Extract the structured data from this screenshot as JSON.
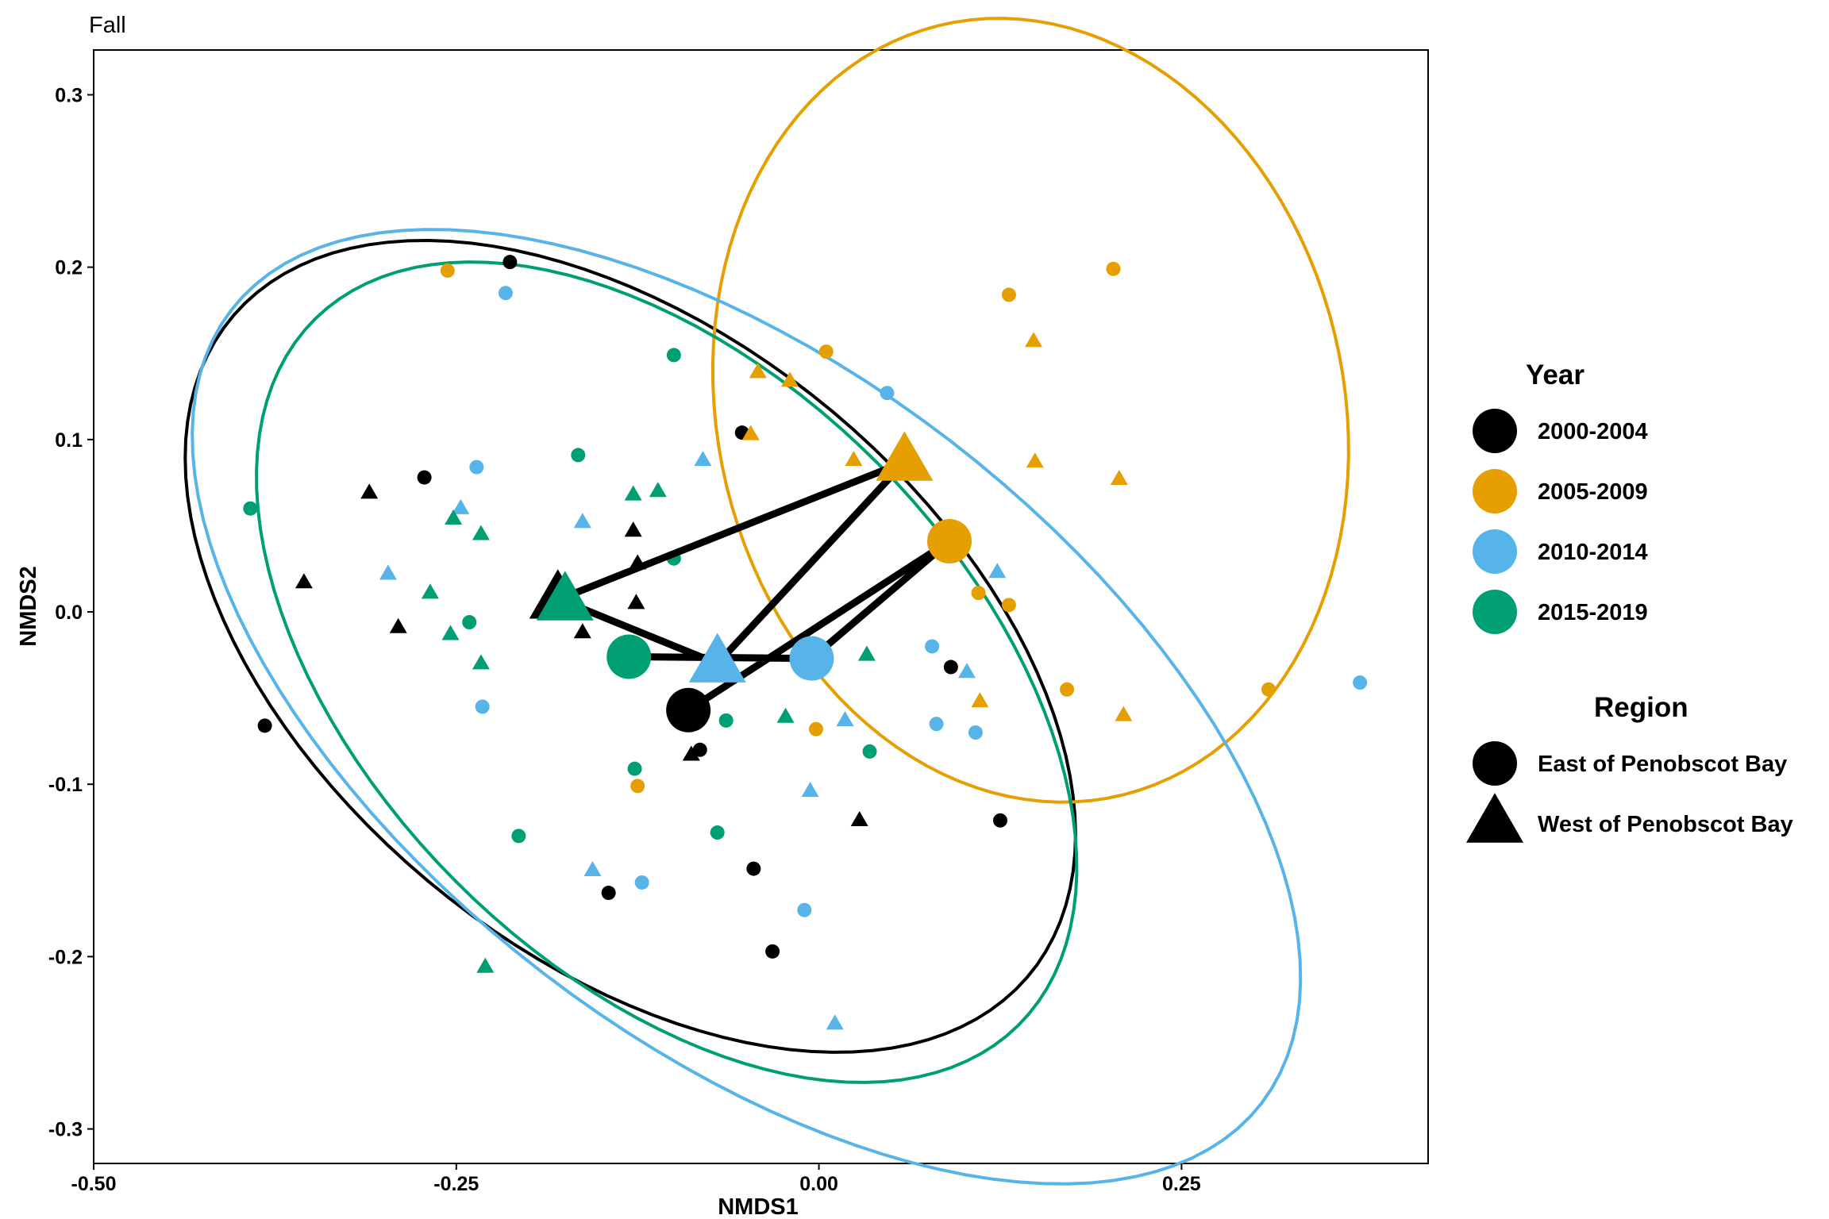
{
  "chart_data": {
    "type": "scatter",
    "title": "Fall",
    "xlabel": "NMDS1",
    "ylabel": "NMDS2",
    "xlim": [
      -0.5,
      0.42
    ],
    "ylim": [
      -0.32,
      0.326
    ],
    "x_ticks": [
      -0.5,
      -0.25,
      0.0,
      0.25
    ],
    "x_tick_labels": [
      "-0.50",
      "-0.25",
      "0.00",
      "0.25"
    ],
    "y_ticks": [
      -0.3,
      -0.2,
      -0.1,
      0.0,
      0.1,
      0.2,
      0.3
    ],
    "y_tick_labels": [
      "-0.3",
      "-0.2",
      "-0.1",
      "0.0",
      "0.1",
      "0.2",
      "0.3"
    ],
    "grid": false,
    "legend": {
      "position": "right",
      "year_title": "Year",
      "region_title": "Region",
      "years": [
        {
          "label": "2000-2004",
          "color": "#000000"
        },
        {
          "label": "2005-2009",
          "color": "#E69F00"
        },
        {
          "label": "2010-2014",
          "color": "#56B4E9"
        },
        {
          "label": "2015-2019",
          "color": "#009E73"
        }
      ],
      "regions": [
        {
          "label": "East of Penobscot Bay",
          "shape": "circle"
        },
        {
          "label": "West of Penobscot Bay",
          "shape": "triangle"
        }
      ]
    },
    "ellipses": [
      {
        "year": "2000-2004",
        "cx": -0.13,
        "cy": -0.02,
        "rx": 0.337,
        "ry": 0.19,
        "angle": -30
      },
      {
        "year": "2005-2009",
        "cx": 0.146,
        "cy": 0.117,
        "rx": 0.211,
        "ry": 0.235,
        "angle": 35
      },
      {
        "year": "2010-2014",
        "cx": -0.05,
        "cy": -0.055,
        "rx": 0.425,
        "ry": 0.205,
        "angle": -30
      },
      {
        "year": "2015-2019",
        "cx": -0.105,
        "cy": -0.035,
        "rx": 0.32,
        "ry": 0.185,
        "angle": -35
      }
    ],
    "series": [
      {
        "name": "2000-2004",
        "region": "East of Penobscot Bay",
        "points": [
          [
            -0.213,
            0.203
          ],
          [
            -0.272,
            0.078
          ],
          [
            -0.053,
            0.104
          ],
          [
            -0.382,
            -0.066
          ],
          [
            -0.082,
            -0.08
          ],
          [
            0.091,
            -0.032
          ],
          [
            -0.145,
            -0.163
          ],
          [
            -0.045,
            -0.149
          ],
          [
            -0.032,
            -0.197
          ],
          [
            0.125,
            -0.121
          ]
        ]
      },
      {
        "name": "2000-2004",
        "region": "West of Penobscot Bay",
        "points": [
          [
            -0.31,
            0.069
          ],
          [
            -0.355,
            0.017
          ],
          [
            -0.29,
            -0.009
          ],
          [
            -0.128,
            0.047
          ],
          [
            -0.125,
            0.028
          ],
          [
            -0.126,
            0.005
          ],
          [
            -0.163,
            -0.012
          ],
          [
            -0.088,
            -0.083
          ],
          [
            0.028,
            -0.121
          ]
        ]
      },
      {
        "name": "2005-2009",
        "region": "East of Penobscot Bay",
        "points": [
          [
            -0.256,
            0.198
          ],
          [
            0.203,
            0.199
          ],
          [
            0.131,
            0.184
          ],
          [
            0.005,
            0.151
          ],
          [
            0.11,
            0.011
          ],
          [
            0.131,
            0.004
          ],
          [
            -0.125,
            -0.101
          ],
          [
            -0.002,
            -0.068
          ],
          [
            0.171,
            -0.045
          ],
          [
            0.31,
            -0.045
          ]
        ]
      },
      {
        "name": "2005-2009",
        "region": "West of Penobscot Bay",
        "points": [
          [
            -0.042,
            0.139
          ],
          [
            -0.02,
            0.134
          ],
          [
            -0.047,
            0.103
          ],
          [
            0.148,
            0.157
          ],
          [
            0.024,
            0.088
          ],
          [
            0.149,
            0.087
          ],
          [
            0.207,
            0.077
          ],
          [
            0.111,
            -0.052
          ],
          [
            0.21,
            -0.06
          ]
        ]
      },
      {
        "name": "2010-2014",
        "region": "East of Penobscot Bay",
        "points": [
          [
            -0.216,
            0.185
          ],
          [
            0.047,
            0.127
          ],
          [
            -0.236,
            0.084
          ],
          [
            -0.232,
            -0.055
          ],
          [
            0.078,
            -0.02
          ],
          [
            0.081,
            -0.065
          ],
          [
            0.108,
            -0.07
          ],
          [
            -0.122,
            -0.157
          ],
          [
            -0.01,
            -0.173
          ],
          [
            0.373,
            -0.041
          ]
        ]
      },
      {
        "name": "2010-2014",
        "region": "West of Penobscot Bay",
        "points": [
          [
            -0.247,
            0.06
          ],
          [
            -0.297,
            0.022
          ],
          [
            -0.08,
            0.088
          ],
          [
            -0.163,
            0.052
          ],
          [
            0.123,
            0.023
          ],
          [
            0.102,
            -0.035
          ],
          [
            0.018,
            -0.063
          ],
          [
            -0.006,
            -0.104
          ],
          [
            -0.156,
            -0.15
          ],
          [
            0.011,
            -0.239
          ]
        ]
      },
      {
        "name": "2015-2019",
        "region": "East of Penobscot Bay",
        "points": [
          [
            -0.392,
            0.06
          ],
          [
            -0.166,
            0.091
          ],
          [
            -0.1,
            0.149
          ],
          [
            -0.1,
            0.031
          ],
          [
            -0.241,
            -0.006
          ],
          [
            -0.127,
            -0.091
          ],
          [
            -0.064,
            -0.063
          ],
          [
            0.035,
            -0.081
          ],
          [
            -0.207,
            -0.13
          ],
          [
            -0.07,
            -0.128
          ]
        ]
      },
      {
        "name": "2015-2019",
        "region": "West of Penobscot Bay",
        "points": [
          [
            -0.128,
            0.068
          ],
          [
            -0.111,
            0.07
          ],
          [
            -0.252,
            0.054
          ],
          [
            -0.233,
            0.045
          ],
          [
            -0.268,
            0.011
          ],
          [
            -0.254,
            -0.013
          ],
          [
            -0.233,
            -0.03
          ],
          [
            -0.023,
            -0.061
          ],
          [
            0.033,
            -0.025
          ],
          [
            -0.23,
            -0.206
          ]
        ]
      }
    ],
    "centroids": [
      {
        "year": "2000-2004",
        "region": "East of Penobscot Bay",
        "x": -0.09,
        "y": -0.057
      },
      {
        "year": "2000-2004",
        "region": "West of Penobscot Bay",
        "x": -0.18,
        "y": 0.007
      },
      {
        "year": "2005-2009",
        "region": "East of Penobscot Bay",
        "x": 0.09,
        "y": 0.041
      },
      {
        "year": "2005-2009",
        "region": "West of Penobscot Bay",
        "x": 0.059,
        "y": 0.087
      },
      {
        "year": "2010-2014",
        "region": "East of Penobscot Bay",
        "x": -0.005,
        "y": -0.027
      },
      {
        "year": "2010-2014",
        "region": "West of Penobscot Bay",
        "x": -0.07,
        "y": -0.03
      },
      {
        "year": "2015-2019",
        "region": "East of Penobscot Bay",
        "x": -0.131,
        "y": -0.026
      },
      {
        "year": "2015-2019",
        "region": "West of Penobscot Bay",
        "x": -0.175,
        "y": 0.006
      }
    ],
    "trajectory_lines": [
      {
        "region": "East of Penobscot Bay",
        "path": [
          [
            -0.09,
            -0.057
          ],
          [
            0.09,
            0.041
          ],
          [
            -0.005,
            -0.027
          ],
          [
            -0.131,
            -0.026
          ]
        ]
      },
      {
        "region": "West of Penobscot Bay",
        "path": [
          [
            -0.18,
            0.007
          ],
          [
            0.059,
            0.087
          ],
          [
            -0.07,
            -0.03
          ],
          [
            -0.175,
            0.006
          ]
        ]
      }
    ]
  }
}
